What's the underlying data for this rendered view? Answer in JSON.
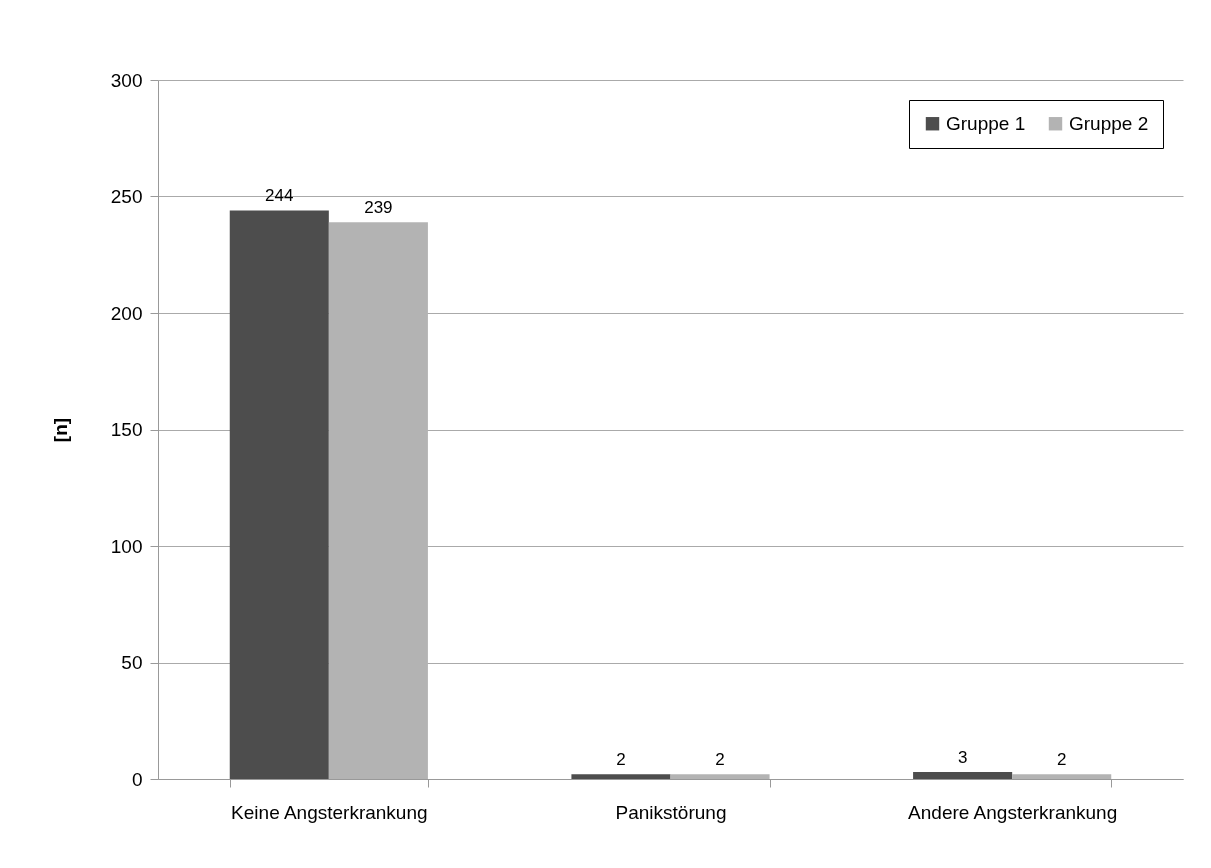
{
  "chart_data": {
    "type": "bar",
    "ylabel": "[n]",
    "categories": [
      "Keine Angsterkrankung",
      "Panikstörung",
      "Andere Angsterkrankung"
    ],
    "series": [
      {
        "name": "Gruppe 1",
        "color": "#4d4d4d",
        "values": [
          244,
          2,
          3
        ]
      },
      {
        "name": "Gruppe 2",
        "color": "#b3b3b3",
        "values": [
          239,
          2,
          2
        ]
      }
    ],
    "ylim": [
      0,
      300
    ],
    "yticks": [
      0,
      50,
      100,
      150,
      200,
      250,
      300
    ],
    "grid": "y",
    "legend": "top right",
    "data_labels": true
  }
}
